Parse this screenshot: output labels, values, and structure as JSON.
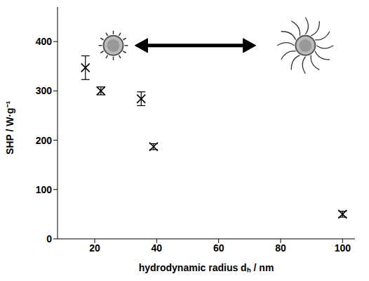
{
  "chart_data": {
    "type": "scatter",
    "x_label": "hydrodynamic radius dₕ / nm",
    "y_label": "SHP / W·g⁻¹",
    "x": [
      17,
      22,
      35,
      39,
      100
    ],
    "values": [
      347,
      300,
      284,
      187,
      50
    ],
    "errors": [
      24,
      8,
      14,
      6,
      6
    ],
    "xlim": [
      8,
      104
    ],
    "ylim": [
      0,
      470
    ],
    "xticks": [
      20,
      40,
      60,
      80,
      100
    ],
    "yticks": [
      0,
      100,
      200,
      300,
      400
    ],
    "color": "#000000",
    "marker": "x",
    "grid": false
  }
}
